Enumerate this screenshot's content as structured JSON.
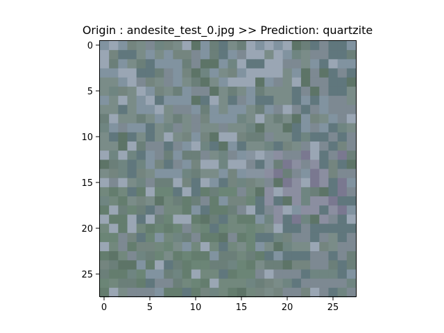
{
  "figure": {
    "title": "Origin : andesite_test_0.jpg >> Prediction: quartzite"
  },
  "image": {
    "width": 28,
    "height": 28,
    "palette": [
      "#6f8581",
      "#74857f",
      "#6b7f79",
      "#7a8c88",
      "#8193a0",
      "#9aa6b4",
      "#60777d",
      "#7d8992",
      "#8b8ea0",
      "#7a7890",
      "#6b8576",
      "#647d6e",
      "#72887d",
      "#839590",
      "#5d7467",
      "#8794a0"
    ]
  },
  "axes": {
    "xticks": [
      "0",
      "5",
      "10",
      "15",
      "20",
      "25"
    ],
    "yticks": [
      "0",
      "5",
      "10",
      "15",
      "20",
      "25"
    ]
  }
}
